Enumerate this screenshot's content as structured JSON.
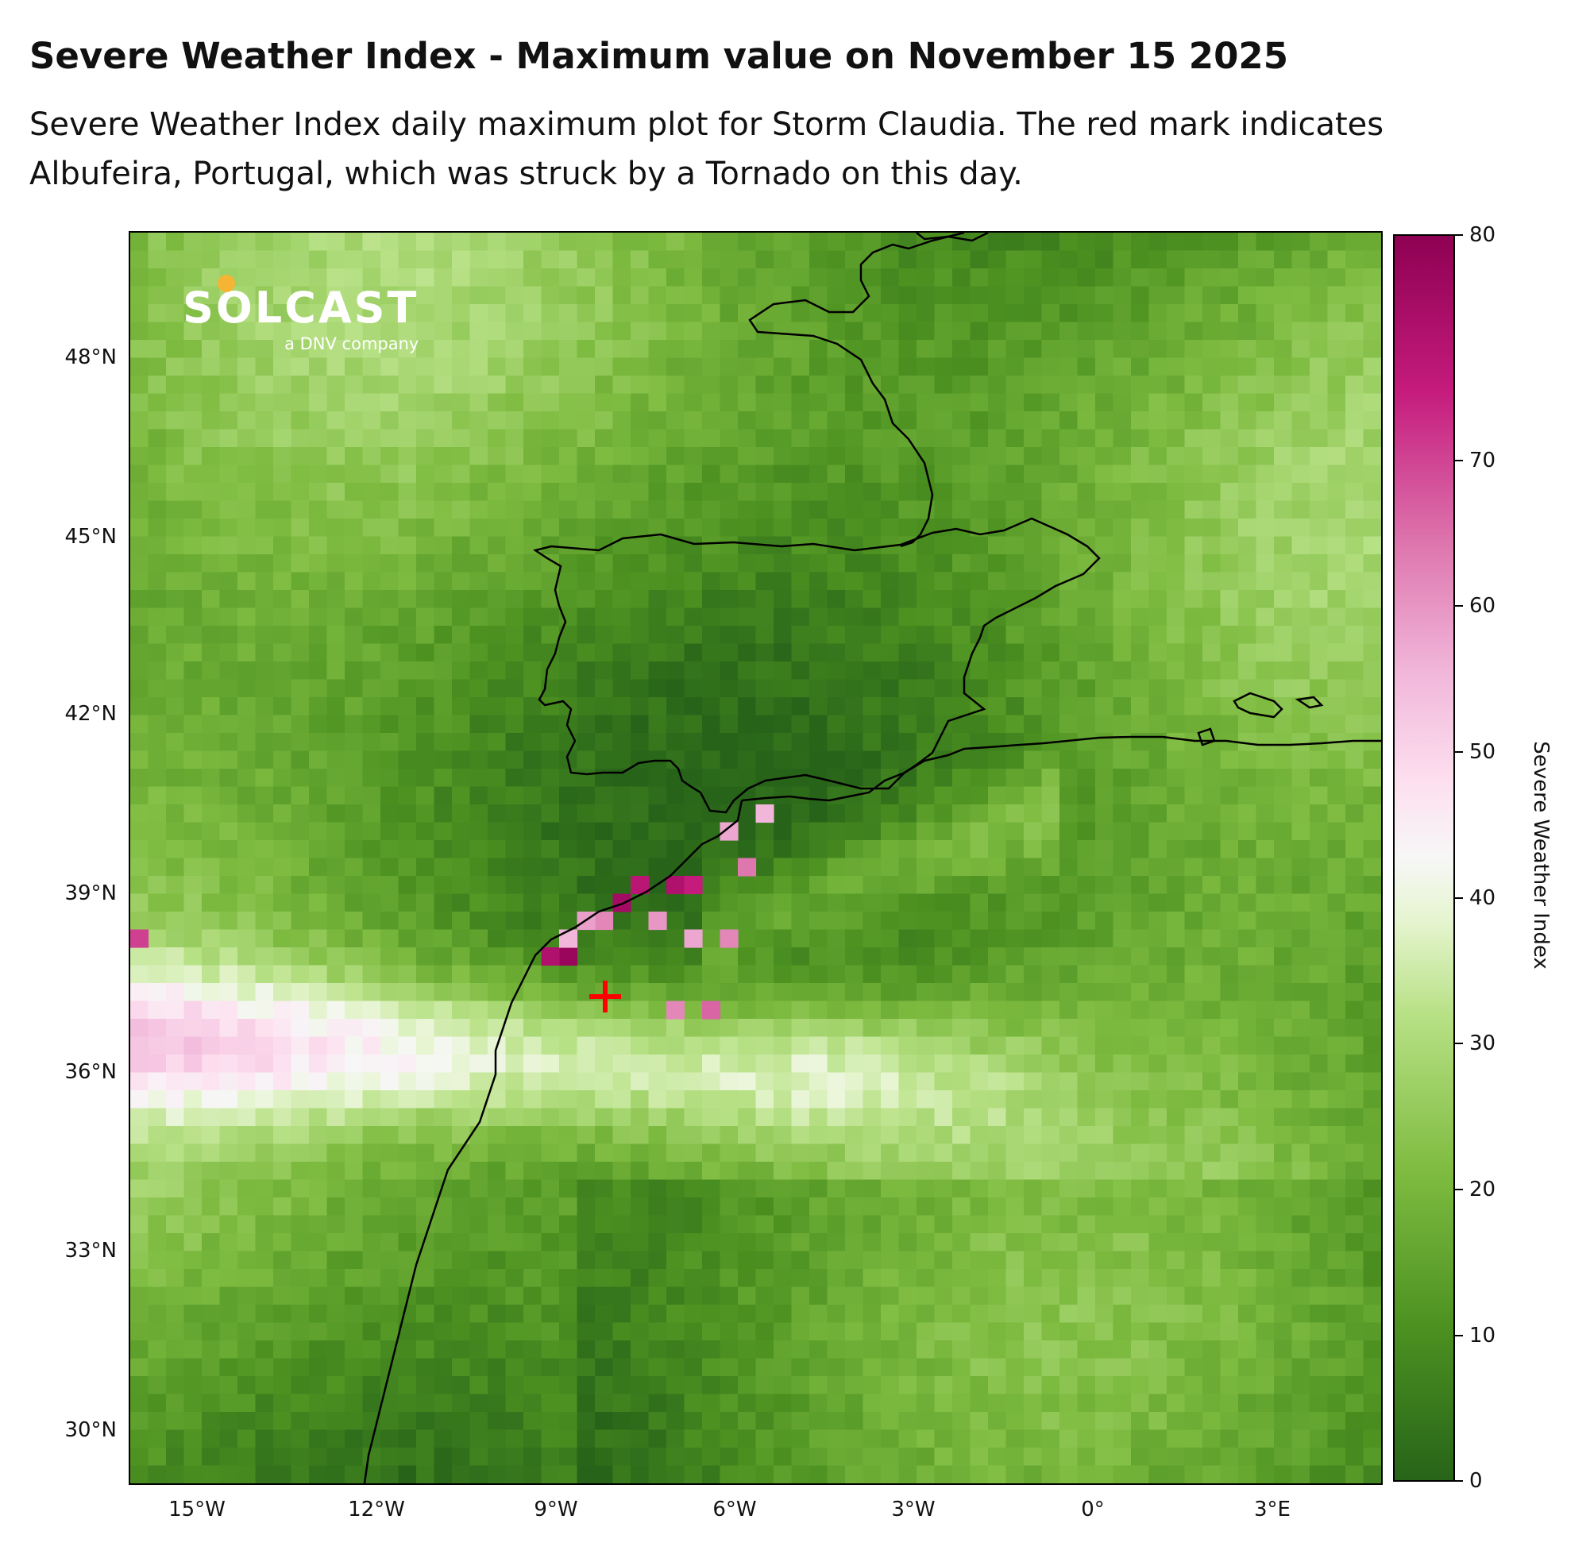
{
  "title": "Severe Weather Index - Maximum value on November 15 2025",
  "subtitle": "Severe Weather Index daily maximum plot for Storm Claudia. The red mark indicates Albufeira, Portugal, which was struck by a Tornado on this day.",
  "logo": {
    "word": "SOLCAST",
    "tagline": "a DNV company",
    "accent_color": "#f5b433"
  },
  "map": {
    "lon_range": [
      -16,
      5
    ],
    "lat_range": [
      29,
      50
    ],
    "lat_ticks": [
      "48°N",
      "45°N",
      "42°N",
      "39°N",
      "36°N",
      "33°N",
      "30°N"
    ],
    "lon_ticks": [
      "15°W",
      "12°W",
      "9°W",
      "6°W",
      "3°W",
      "0°",
      "3°E"
    ],
    "marker": {
      "place": "Albufeira, Portugal",
      "lon": -8.25,
      "lat": 37.1,
      "color": "#ff0000",
      "icon": "plus-marker-icon"
    },
    "colormap": "PiYG_r"
  },
  "colorbar": {
    "label": "Severe Weather Index",
    "ticks": [
      "0",
      "10",
      "20",
      "30",
      "40",
      "50",
      "60",
      "70",
      "80"
    ],
    "range": [
      0,
      80
    ]
  }
}
